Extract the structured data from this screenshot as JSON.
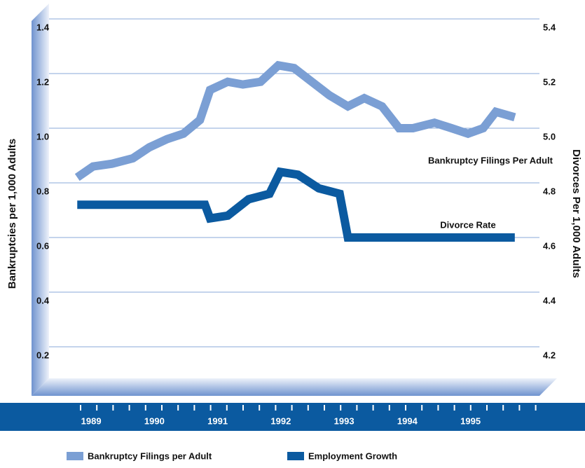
{
  "chart_data": {
    "type": "line",
    "y_label": "Bankruptcies per 1,000 Adults",
    "y2_label": "Divorces Per 1,000 Adults",
    "annotations": [
      "Bankruptcy Filings Per Adult",
      "Divorce Rate"
    ],
    "legend": [
      "Bankruptcy Filings per Adult",
      "Employment Growth"
    ],
    "legend_colors": [
      "#7b9fd4",
      "#0b5aa0"
    ],
    "xlim": [
      1988.5,
      1996.5
    ],
    "xticks": [
      1989,
      1990,
      1991,
      1992,
      1993,
      1994,
      1995
    ],
    "ylim": [
      0,
      1.4
    ],
    "yticks": [
      0.2,
      0.4,
      0.6,
      0.8,
      {
        "value": 1.0,
        "label": "1.0"
      },
      1.2,
      1.4
    ],
    "y2lim": [
      4.0,
      5.4
    ],
    "y2ticks": [
      4.2,
      4.4,
      4.6,
      4.8,
      {
        "value": 5.0,
        "label": "5.0"
      },
      5.2,
      5.4
    ],
    "grid": true,
    "series": [
      {
        "color": "#7b9fd4",
        "axis": "y",
        "x": [
          1988.78,
          1989.03,
          1989.33,
          1989.66,
          1989.92,
          1990.2,
          1990.46,
          1990.72,
          1990.88,
          1991.16,
          1991.4,
          1991.68,
          1991.96,
          1992.21,
          1992.49,
          1992.77,
          1993.06,
          1993.32,
          1993.6,
          1993.87,
          1994.09,
          1994.43,
          1994.7,
          1994.96,
          1995.2,
          1995.4,
          1995.7
        ],
        "values": [
          0.82,
          0.86,
          0.87,
          0.89,
          0.93,
          0.96,
          0.98,
          1.03,
          1.14,
          1.17,
          1.16,
          1.17,
          1.23,
          1.22,
          1.17,
          1.12,
          1.08,
          1.11,
          1.08,
          1.0,
          1.0,
          1.02,
          1.0,
          0.98,
          1.0,
          1.06,
          1.04
        ]
      },
      {
        "color": "#0b5aa0",
        "axis": "y2",
        "x": [
          1988.78,
          1990.8,
          1990.88,
          1991.16,
          1991.49,
          1991.82,
          1991.99,
          1992.27,
          1992.6,
          1992.93,
          1993.06,
          1995.7
        ],
        "values": [
          4.72,
          4.72,
          4.67,
          4.68,
          4.74,
          4.76,
          4.84,
          4.83,
          4.78,
          4.76,
          4.6,
          4.6
        ]
      }
    ]
  }
}
